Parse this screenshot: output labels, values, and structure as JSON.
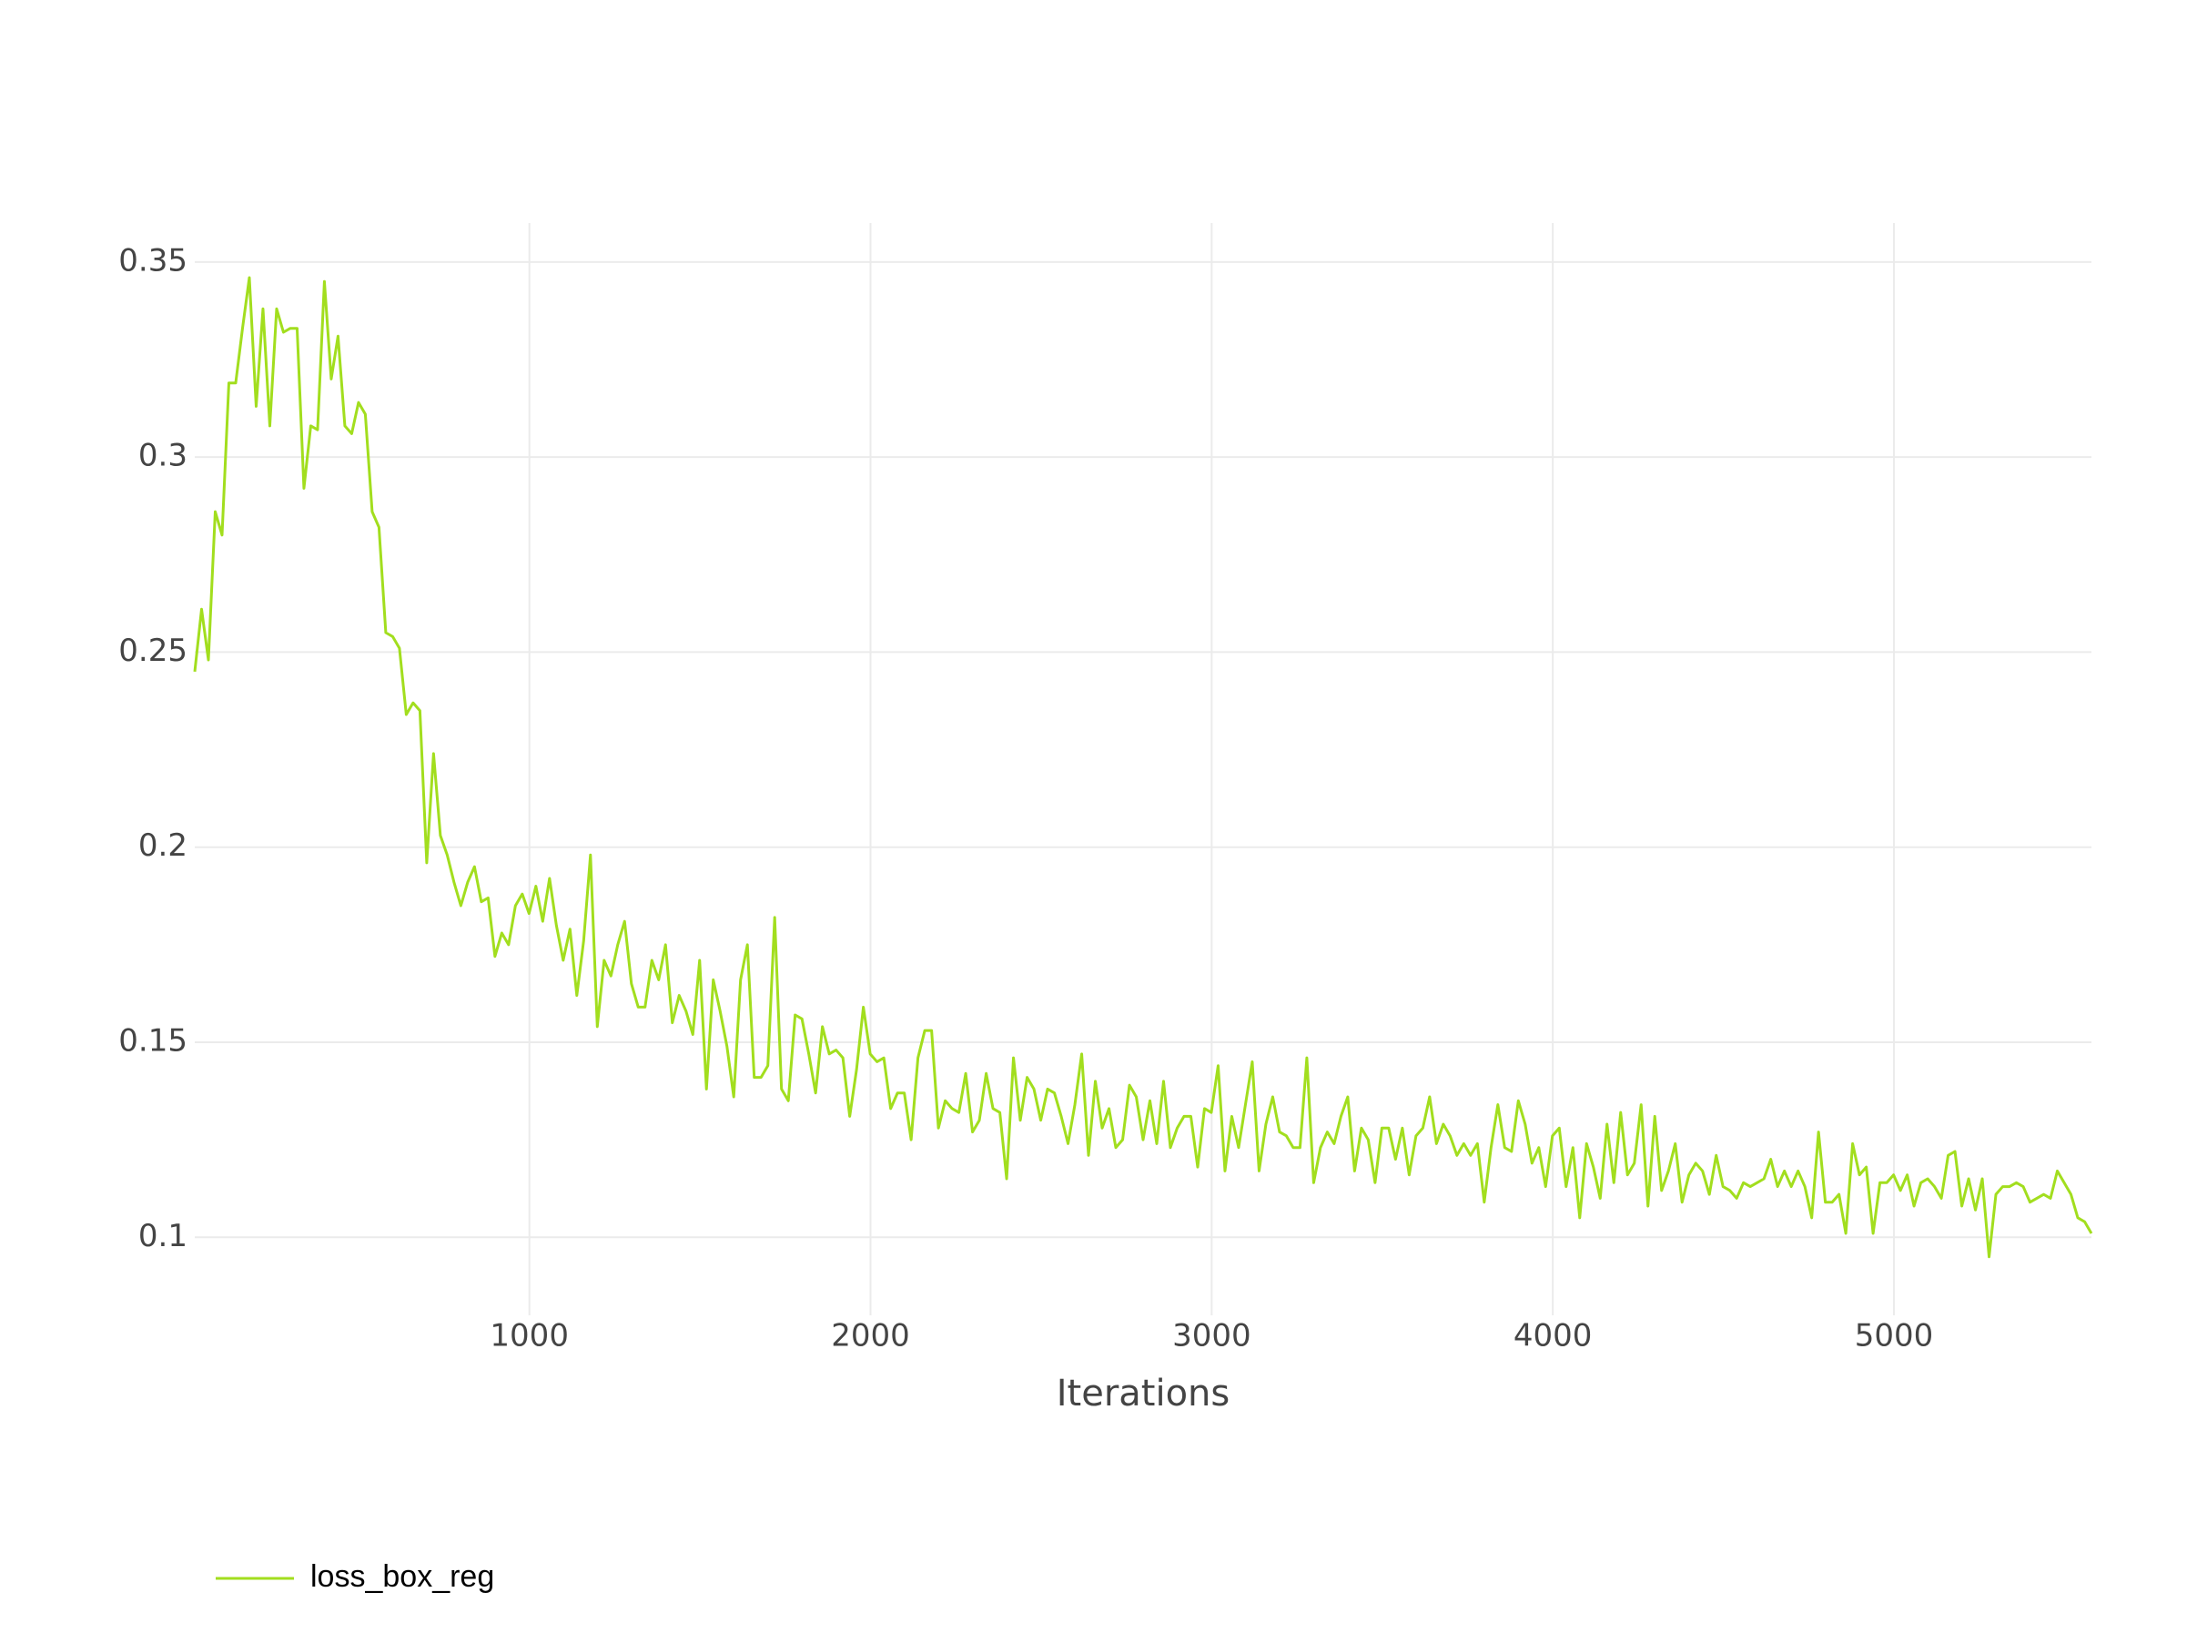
{
  "chart_data": {
    "type": "line",
    "x_label": "Iterations",
    "x": [
      19,
      39,
      59,
      79,
      99,
      119,
      139,
      159,
      179,
      199,
      219,
      239,
      259,
      279,
      299,
      319,
      339,
      359,
      379,
      399,
      419,
      439,
      459,
      479,
      499,
      519,
      539,
      559,
      579,
      599,
      619,
      639,
      659,
      679,
      699,
      719,
      739,
      759,
      779,
      799,
      819,
      839,
      859,
      879,
      899,
      919,
      939,
      959,
      979,
      999,
      1019,
      1039,
      1059,
      1079,
      1099,
      1119,
      1139,
      1159,
      1179,
      1199,
      1219,
      1239,
      1259,
      1279,
      1299,
      1319,
      1339,
      1359,
      1379,
      1399,
      1419,
      1439,
      1459,
      1479,
      1499,
      1519,
      1539,
      1559,
      1579,
      1599,
      1619,
      1639,
      1659,
      1679,
      1699,
      1719,
      1739,
      1759,
      1779,
      1799,
      1819,
      1839,
      1859,
      1879,
      1899,
      1919,
      1939,
      1959,
      1979,
      1999,
      2019,
      2039,
      2059,
      2079,
      2099,
      2119,
      2139,
      2159,
      2179,
      2199,
      2219,
      2239,
      2259,
      2279,
      2299,
      2319,
      2339,
      2359,
      2379,
      2399,
      2419,
      2439,
      2459,
      2479,
      2499,
      2519,
      2539,
      2559,
      2579,
      2599,
      2619,
      2639,
      2659,
      2679,
      2699,
      2719,
      2739,
      2759,
      2779,
      2799,
      2819,
      2839,
      2859,
      2879,
      2899,
      2919,
      2939,
      2959,
      2979,
      2999,
      3019,
      3039,
      3059,
      3079,
      3099,
      3119,
      3139,
      3159,
      3179,
      3199,
      3219,
      3239,
      3259,
      3279,
      3299,
      3319,
      3339,
      3359,
      3379,
      3399,
      3419,
      3439,
      3459,
      3479,
      3499,
      3519,
      3539,
      3559,
      3579,
      3599,
      3619,
      3639,
      3659,
      3679,
      3699,
      3719,
      3739,
      3759,
      3779,
      3799,
      3819,
      3839,
      3859,
      3879,
      3899,
      3919,
      3939,
      3959,
      3979,
      3999,
      4019,
      4039,
      4059,
      4079,
      4099,
      4119,
      4139,
      4159,
      4179,
      4199,
      4219,
      4239,
      4259,
      4279,
      4299,
      4319,
      4339,
      4359,
      4379,
      4399,
      4419,
      4439,
      4459,
      4479,
      4499,
      4519,
      4539,
      4559,
      4579,
      4599,
      4619,
      4639,
      4659,
      4679,
      4699,
      4719,
      4739,
      4759,
      4779,
      4799,
      4819,
      4839,
      4859,
      4879,
      4899,
      4919,
      4939,
      4959,
      4979,
      4999,
      5019,
      5039,
      5059,
      5079,
      5099,
      5119,
      5139,
      5159,
      5179,
      5199,
      5219,
      5239,
      5259,
      5279,
      5299,
      5319,
      5339,
      5359,
      5379,
      5399,
      5419,
      5439,
      5459,
      5479,
      5499,
      5519,
      5539,
      5559,
      5579
    ],
    "series": [
      {
        "name": "loss_box_reg",
        "color": "#a2de1e",
        "values": [
          0.245,
          0.261,
          0.248,
          0.286,
          0.28,
          0.319,
          0.319,
          0.333,
          0.346,
          0.313,
          0.338,
          0.308,
          0.338,
          0.332,
          0.333,
          0.333,
          0.292,
          0.308,
          0.307,
          0.345,
          0.32,
          0.331,
          0.308,
          0.306,
          0.314,
          0.311,
          0.286,
          0.282,
          0.255,
          0.254,
          0.251,
          0.234,
          0.237,
          0.235,
          0.196,
          0.224,
          0.203,
          0.198,
          0.191,
          0.185,
          0.191,
          0.195,
          0.186,
          0.187,
          0.172,
          0.178,
          0.175,
          0.185,
          0.188,
          0.183,
          0.19,
          0.181,
          0.192,
          0.18,
          0.171,
          0.179,
          0.162,
          0.176,
          0.198,
          0.154,
          0.171,
          0.167,
          0.175,
          0.181,
          0.165,
          0.159,
          0.159,
          0.171,
          0.166,
          0.175,
          0.155,
          0.162,
          0.158,
          0.152,
          0.171,
          0.138,
          0.166,
          0.158,
          0.149,
          0.136,
          0.166,
          0.175,
          0.141,
          0.141,
          0.144,
          0.182,
          0.138,
          0.135,
          0.157,
          0.156,
          0.147,
          0.137,
          0.154,
          0.147,
          0.148,
          0.146,
          0.131,
          0.143,
          0.159,
          0.147,
          0.145,
          0.146,
          0.133,
          0.137,
          0.137,
          0.125,
          0.146,
          0.153,
          0.153,
          0.128,
          0.135,
          0.133,
          0.132,
          0.142,
          0.127,
          0.13,
          0.142,
          0.133,
          0.132,
          0.115,
          0.146,
          0.13,
          0.141,
          0.138,
          0.13,
          0.138,
          0.137,
          0.131,
          0.124,
          0.134,
          0.147,
          0.121,
          0.14,
          0.128,
          0.133,
          0.123,
          0.125,
          0.139,
          0.136,
          0.125,
          0.135,
          0.124,
          0.14,
          0.123,
          0.128,
          0.131,
          0.131,
          0.118,
          0.133,
          0.132,
          0.144,
          0.117,
          0.131,
          0.123,
          0.134,
          0.145,
          0.117,
          0.129,
          0.136,
          0.127,
          0.126,
          0.123,
          0.123,
          0.146,
          0.114,
          0.123,
          0.127,
          0.124,
          0.131,
          0.136,
          0.117,
          0.128,
          0.125,
          0.114,
          0.128,
          0.128,
          0.12,
          0.128,
          0.116,
          0.126,
          0.128,
          0.136,
          0.124,
          0.129,
          0.126,
          0.121,
          0.124,
          0.121,
          0.124,
          0.109,
          0.123,
          0.134,
          0.123,
          0.122,
          0.135,
          0.129,
          0.119,
          0.123,
          0.113,
          0.126,
          0.128,
          0.113,
          0.123,
          0.105,
          0.124,
          0.118,
          0.11,
          0.129,
          0.114,
          0.132,
          0.116,
          0.119,
          0.134,
          0.108,
          0.131,
          0.112,
          0.117,
          0.124,
          0.109,
          0.116,
          0.119,
          0.117,
          0.111,
          0.121,
          0.113,
          0.112,
          0.11,
          0.114,
          0.113,
          0.114,
          0.115,
          0.12,
          0.113,
          0.117,
          0.113,
          0.117,
          0.113,
          0.105,
          0.127,
          0.109,
          0.109,
          0.111,
          0.101,
          0.124,
          0.116,
          0.118,
          0.101,
          0.114,
          0.114,
          0.116,
          0.112,
          0.116,
          0.108,
          0.114,
          0.115,
          0.113,
          0.11,
          0.121,
          0.122,
          0.108,
          0.115,
          0.107,
          0.115,
          0.095,
          0.111,
          0.113,
          0.113,
          0.114,
          0.113,
          0.109,
          0.11,
          0.111,
          0.11,
          0.117,
          0.114,
          0.111,
          0.105,
          0.104,
          0.101
        ]
      }
    ],
    "xlim": [
      19,
      5579
    ],
    "ylim": [
      0.08,
      0.36
    ],
    "xticks": [
      1000,
      2000,
      3000,
      4000,
      5000
    ],
    "yticks": [
      0.1,
      0.15,
      0.2,
      0.25,
      0.3,
      0.35
    ],
    "grid": true,
    "legend": "bottom-left"
  }
}
